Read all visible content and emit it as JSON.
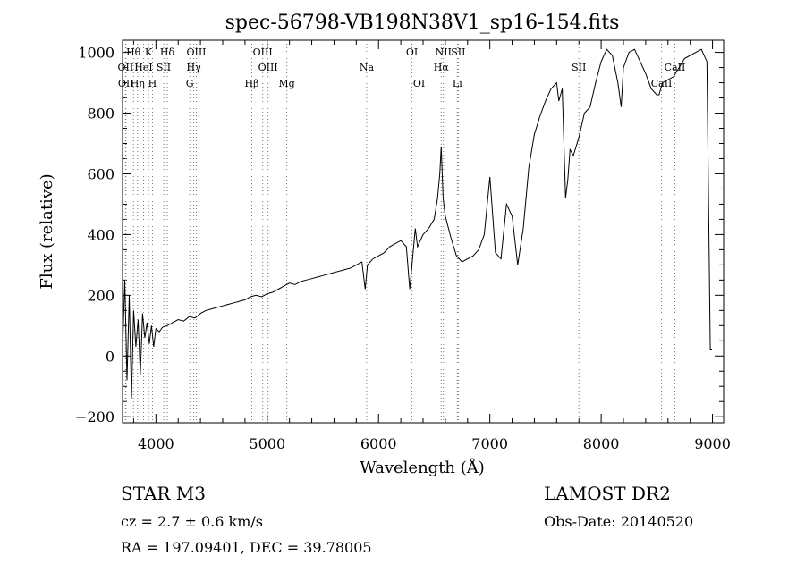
{
  "chart_data": {
    "type": "line",
    "title": "spec-56798-VB198N38V1_sp16-154.fits",
    "xlabel": "Wavelength (Å)",
    "ylabel": "Flux (relative)",
    "xlim": [
      3700,
      9100
    ],
    "ylim": [
      -220,
      1040
    ],
    "x_ticks": [
      4000,
      5000,
      6000,
      7000,
      8000,
      9000
    ],
    "y_ticks": [
      -200,
      0,
      200,
      400,
      600,
      800,
      1000
    ],
    "grid": false,
    "series": [
      {
        "x": [
          3700,
          3720,
          3740,
          3760,
          3780,
          3800,
          3820,
          3840,
          3860,
          3880,
          3900,
          3920,
          3940,
          3960,
          3980,
          4000,
          4030,
          4060,
          4100,
          4150,
          4200,
          4250,
          4300,
          4350,
          4400,
          4450,
          4500,
          4550,
          4600,
          4650,
          4700,
          4750,
          4800,
          4850,
          4900,
          4950,
          5000,
          5050,
          5100,
          5150,
          5200,
          5250,
          5300,
          5350,
          5400,
          5450,
          5500,
          5550,
          5600,
          5650,
          5700,
          5750,
          5800,
          5850,
          5880,
          5900,
          5950,
          6000,
          6050,
          6100,
          6150,
          6200,
          6250,
          6280,
          6300,
          6330,
          6350,
          6400,
          6450,
          6500,
          6530,
          6550,
          6563,
          6580,
          6600,
          6650,
          6700,
          6750,
          6800,
          6850,
          6900,
          6950,
          7000,
          7050,
          7100,
          7150,
          7200,
          7250,
          7300,
          7350,
          7400,
          7450,
          7500,
          7550,
          7600,
          7620,
          7650,
          7680,
          7700,
          7720,
          7750,
          7800,
          7850,
          7900,
          7950,
          8000,
          8050,
          8100,
          8150,
          8180,
          8200,
          8250,
          8300,
          8350,
          8400,
          8450,
          8500,
          8520,
          8550,
          8600,
          8650,
          8700,
          8750,
          8800,
          8850,
          8900,
          8950,
          8980,
          8995
        ],
        "y": [
          20,
          250,
          -80,
          200,
          -140,
          150,
          30,
          120,
          -60,
          140,
          60,
          110,
          40,
          100,
          30,
          90,
          80,
          95,
          100,
          110,
          120,
          115,
          130,
          125,
          140,
          150,
          155,
          160,
          165,
          170,
          175,
          180,
          185,
          195,
          200,
          195,
          205,
          210,
          220,
          230,
          240,
          235,
          245,
          250,
          255,
          260,
          265,
          270,
          275,
          280,
          285,
          290,
          300,
          310,
          220,
          300,
          320,
          330,
          340,
          360,
          370,
          380,
          360,
          220,
          300,
          420,
          360,
          400,
          420,
          450,
          520,
          600,
          690,
          520,
          460,
          390,
          330,
          310,
          320,
          330,
          350,
          400,
          590,
          340,
          320,
          500,
          460,
          300,
          420,
          620,
          730,
          790,
          840,
          880,
          900,
          840,
          880,
          520,
          580,
          680,
          660,
          720,
          800,
          820,
          900,
          970,
          1010,
          990,
          900,
          820,
          950,
          1000,
          1010,
          970,
          930,
          880,
          860,
          860,
          900,
          910,
          920,
          950,
          980,
          990,
          1000,
          1010,
          970,
          20,
          20
        ]
      }
    ],
    "line_markers": [
      {
        "label": "Hθ",
        "x": 3798
      },
      {
        "label": "K",
        "x": 3934
      },
      {
        "label": "Hδ",
        "x": 4102
      },
      {
        "label": "OIII",
        "x": 4363
      },
      {
        "label": "OIII",
        "x": 4959
      },
      {
        "label": "OI",
        "x": 6300
      },
      {
        "label": "NII",
        "x": 6583
      },
      {
        "label": "SII",
        "x": 6716
      },
      {
        "label": "OII",
        "x": 3727
      },
      {
        "label": "HeI",
        "x": 3889
      },
      {
        "label": "SII",
        "x": 4070
      },
      {
        "label": "Hγ",
        "x": 4340
      },
      {
        "label": "OIII",
        "x": 5007
      },
      {
        "label": "Na",
        "x": 5893
      },
      {
        "label": "Hα",
        "x": 6563
      },
      {
        "label": "SII",
        "x": 7800
      },
      {
        "label": "CaII",
        "x": 8662
      },
      {
        "label": "OII",
        "x": 3730
      },
      {
        "label": "Hη",
        "x": 3835
      },
      {
        "label": "H",
        "x": 3969
      },
      {
        "label": "G",
        "x": 4304
      },
      {
        "label": "Hβ",
        "x": 4861
      },
      {
        "label": "Mg",
        "x": 5175
      },
      {
        "label": "OI",
        "x": 6364
      },
      {
        "label": "Li",
        "x": 6708
      },
      {
        "label": "CaII",
        "x": 8542
      }
    ]
  },
  "footer": {
    "star": "STAR    M3",
    "survey": "LAMOST DR2",
    "cz": "cz = 2.7 ± 0.6 km/s",
    "obs_date": "Obs-Date: 20140520",
    "radec": "RA = 197.09401, DEC =  39.78005"
  }
}
